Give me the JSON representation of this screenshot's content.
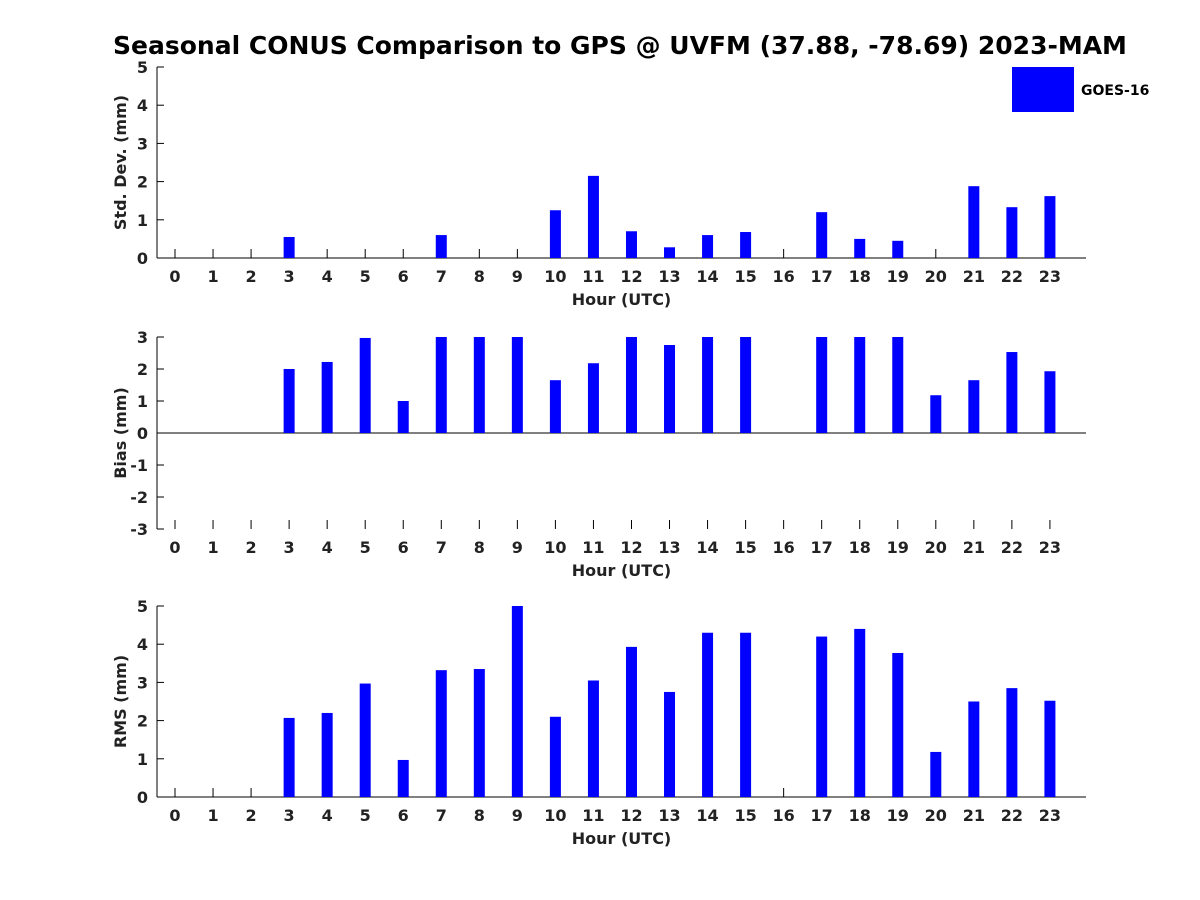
{
  "chart_data": {
    "title": "Seasonal CONUS Comparison to GPS @ UVFM (37.88, -78.69) 2023-MAM",
    "legend": {
      "label": "GOES-16",
      "color": "#0000ff",
      "placement": "top-right"
    },
    "panels": [
      {
        "type": "bar",
        "ylabel": "Std. Dev. (mm)",
        "xlabel": "Hour (UTC)",
        "ylim": [
          0,
          5
        ],
        "yticks": [
          0,
          1,
          2,
          3,
          4,
          5
        ],
        "categories": [
          0,
          1,
          2,
          3,
          4,
          5,
          6,
          7,
          8,
          9,
          10,
          11,
          12,
          13,
          14,
          15,
          16,
          17,
          18,
          19,
          20,
          21,
          22,
          23
        ],
        "values": [
          null,
          null,
          null,
          0.55,
          null,
          null,
          null,
          0.6,
          null,
          null,
          1.25,
          2.15,
          0.7,
          0.28,
          0.6,
          0.68,
          null,
          1.2,
          0.5,
          0.45,
          null,
          1.88,
          1.33,
          1.62
        ],
        "zero_line": false
      },
      {
        "type": "bar",
        "ylabel": "Bias (mm)",
        "xlabel": "Hour (UTC)",
        "ylim": [
          -3,
          3
        ],
        "yticks": [
          -3,
          -2,
          -1,
          0,
          1,
          2,
          3
        ],
        "categories": [
          0,
          1,
          2,
          3,
          4,
          5,
          6,
          7,
          8,
          9,
          10,
          11,
          12,
          13,
          14,
          15,
          16,
          17,
          18,
          19,
          20,
          21,
          22,
          23
        ],
        "values": [
          null,
          null,
          null,
          2.0,
          2.22,
          2.97,
          1.0,
          3.0,
          3.0,
          3.0,
          1.65,
          2.18,
          3.0,
          2.75,
          3.0,
          3.0,
          null,
          3.0,
          3.0,
          3.0,
          1.18,
          1.65,
          2.53,
          1.93
        ],
        "zero_line": true
      },
      {
        "type": "bar",
        "ylabel": "RMS (mm)",
        "xlabel": "Hour (UTC)",
        "ylim": [
          0,
          5
        ],
        "yticks": [
          0,
          1,
          2,
          3,
          4,
          5
        ],
        "categories": [
          0,
          1,
          2,
          3,
          4,
          5,
          6,
          7,
          8,
          9,
          10,
          11,
          12,
          13,
          14,
          15,
          16,
          17,
          18,
          19,
          20,
          21,
          22,
          23
        ],
        "values": [
          null,
          null,
          null,
          2.07,
          2.2,
          2.97,
          0.97,
          3.32,
          3.35,
          5.0,
          2.1,
          3.05,
          3.93,
          2.75,
          4.3,
          4.3,
          null,
          4.2,
          4.4,
          3.77,
          1.18,
          2.5,
          2.85,
          2.52
        ],
        "zero_line": false
      }
    ]
  }
}
